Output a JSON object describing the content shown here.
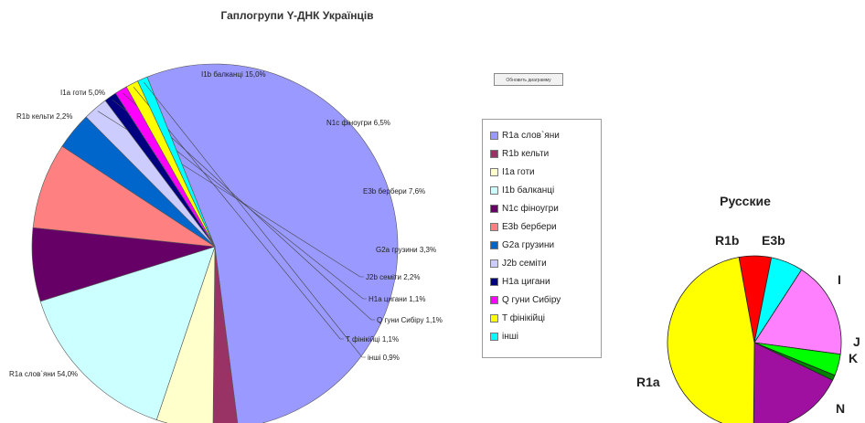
{
  "chart_data": [
    {
      "type": "pie",
      "title": "Гаплогрупи Y-ДНК Українців",
      "legend_position": "right",
      "slices": [
        {
          "name": "R1a слов'яни",
          "label": "R1a слов`яни 54,0%",
          "value": 54.0,
          "color": "#9999ff"
        },
        {
          "name": "R1b кельти",
          "label": "R1b кельти 2,2%",
          "value": 2.2,
          "color": "#993366"
        },
        {
          "name": "I1a готи",
          "label": "I1a готи 5,0%",
          "value": 5.0,
          "color": "#ffffcc"
        },
        {
          "name": "I1b балканці",
          "label": "I1b балканці 15,0%",
          "value": 15.0,
          "color": "#ccffff"
        },
        {
          "name": "N1c фіноугри",
          "label": "N1c фіноугри 6,5%",
          "value": 6.5,
          "color": "#660066"
        },
        {
          "name": "E3b бербери",
          "label": "E3b бербери 7,6%",
          "value": 7.6,
          "color": "#ff8080"
        },
        {
          "name": "G2a грузини",
          "label": "G2a грузини 3,3%",
          "value": 3.3,
          "color": "#0066cc"
        },
        {
          "name": "J2b семіти",
          "label": "J2b семіти 2,2%",
          "value": 2.2,
          "color": "#ccccff"
        },
        {
          "name": "H1a цигани",
          "label": "H1a цигани 1,1%",
          "value": 1.1,
          "color": "#000080"
        },
        {
          "name": "Q гуни Сибіру",
          "label": "Q гуни Сибіру 1,1%",
          "value": 1.1,
          "color": "#ff00ff"
        },
        {
          "name": "T фінікійці",
          "label": "T фінікійці 1,1%",
          "value": 1.1,
          "color": "#ffff00"
        },
        {
          "name": "інші",
          "label": "інші 0,9%",
          "value": 0.9,
          "color": "#00ffff"
        }
      ],
      "legend": [
        "R1a слов`яни",
        "R1b кельти",
        "I1a готи",
        "I1b балканці",
        "N1c фіноугри",
        "E3b бербери",
        "G2a грузини",
        "J2b семіти",
        "H1a цигани",
        "Q гуни Сибіру",
        "T фінікійці",
        "інші"
      ]
    },
    {
      "type": "pie",
      "title": "Русские",
      "slices": [
        {
          "name": "R1a",
          "value": 47,
          "color": "#ffff00"
        },
        {
          "name": "R1b",
          "value": 6,
          "color": "#ff0000"
        },
        {
          "name": "E3b",
          "value": 6,
          "color": "#00ffff"
        },
        {
          "name": "I",
          "value": 18,
          "color": "#ff80ff"
        },
        {
          "name": "J",
          "value": 4,
          "color": "#00ff00"
        },
        {
          "name": "K",
          "value": 1,
          "color": "#008000"
        },
        {
          "name": "N",
          "value": 18,
          "color": "#a010a0"
        }
      ]
    }
  ],
  "controls": {
    "small_button_label": "Обновить диаграмму"
  }
}
